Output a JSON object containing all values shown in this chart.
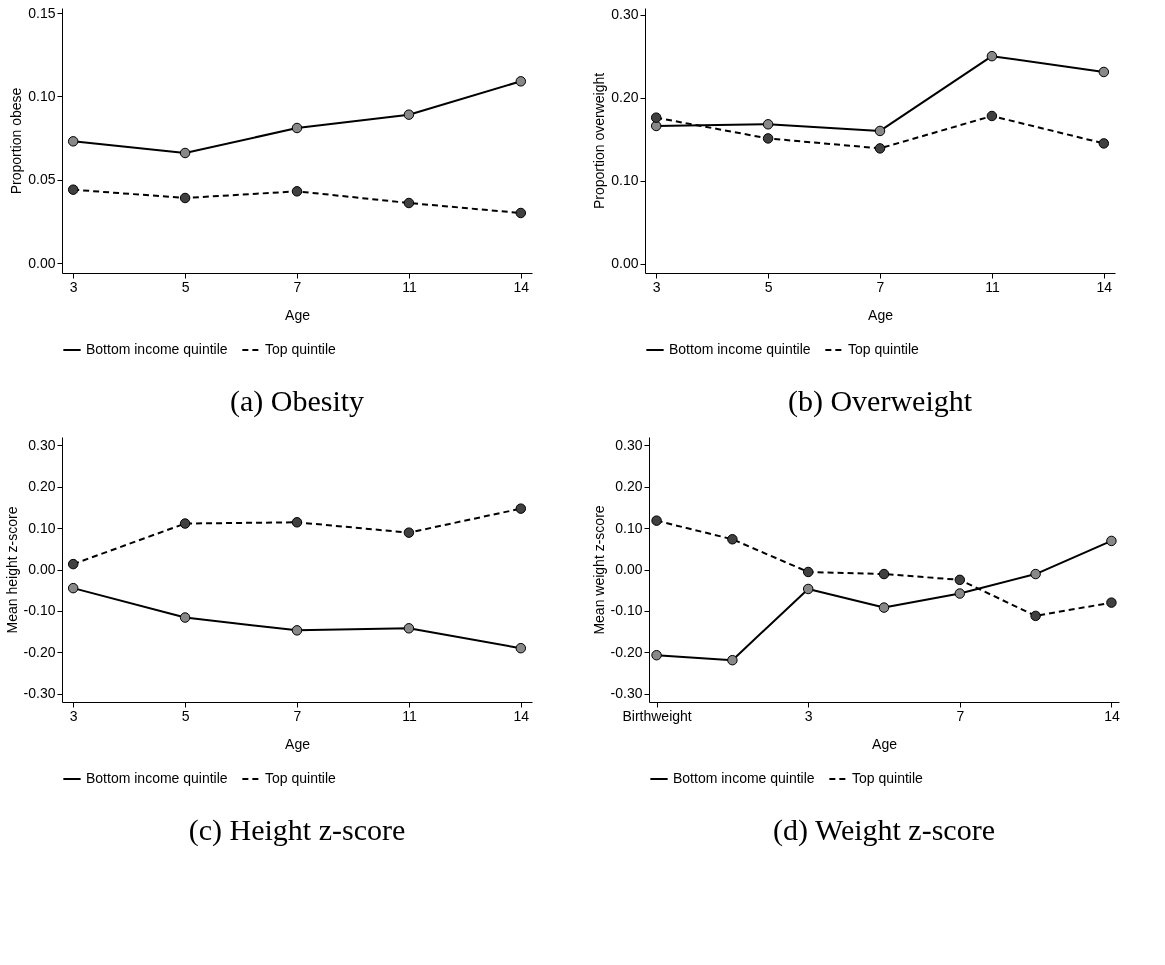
{
  "chart_data": [
    {
      "type": "line",
      "title": "(a) Obesity",
      "xlabel": "Age",
      "ylabel": "Proportion obese",
      "categories": [
        "3",
        "5",
        "7",
        "11",
        "14"
      ],
      "ylim": [
        -0.006,
        0.153
      ],
      "yticks": [
        {
          "value": 0,
          "label": "0.00"
        },
        {
          "value": 0.05,
          "label": "0.05"
        },
        {
          "value": 0.1,
          "label": "0.10"
        },
        {
          "value": 0.15,
          "label": "0.15"
        }
      ],
      "marker": "circle",
      "legend": "bottom",
      "grid": false,
      "series": [
        {
          "name": "Bottom income quintile",
          "color": "#000000",
          "line_style": "solid",
          "values": [
            0.073,
            0.066,
            0.081,
            0.089,
            0.109
          ]
        },
        {
          "name": "Top quintile",
          "color": "#000000",
          "line_style": "dashed",
          "values": [
            0.044,
            0.039,
            0.043,
            0.036,
            0.03
          ]
        }
      ]
    },
    {
      "type": "line",
      "title": "(b) Overweight",
      "xlabel": "Age",
      "ylabel": "Proportion overweight",
      "categories": [
        "3",
        "5",
        "7",
        "11",
        "14"
      ],
      "ylim": [
        -0.011,
        0.308
      ],
      "yticks": [
        {
          "value": 0,
          "label": "0.00"
        },
        {
          "value": 0.1,
          "label": "0.10"
        },
        {
          "value": 0.2,
          "label": "0.20"
        },
        {
          "value": 0.3,
          "label": "0.30"
        }
      ],
      "marker": "circle",
      "legend": "bottom",
      "grid": false,
      "series": [
        {
          "name": "Bottom income quintile",
          "color": "#000000",
          "line_style": "solid",
          "values": [
            0.166,
            0.168,
            0.16,
            0.25,
            0.231
          ]
        },
        {
          "name": "Top quintile",
          "color": "#000000",
          "line_style": "dashed",
          "values": [
            0.176,
            0.151,
            0.139,
            0.178,
            0.145
          ]
        }
      ]
    },
    {
      "type": "line",
      "title": "(c) Height z-score",
      "xlabel": "Age",
      "ylabel": "Mean height z-score",
      "categories": [
        "3",
        "5",
        "7",
        "11",
        "14"
      ],
      "ylim": [
        -0.32,
        0.32
      ],
      "yticks": [
        {
          "value": -0.3,
          "label": "-0.30"
        },
        {
          "value": -0.2,
          "label": "-0.20"
        },
        {
          "value": -0.1,
          "label": "-0.10"
        },
        {
          "value": 0,
          "label": "0.00"
        },
        {
          "value": 0.1,
          "label": "0.10"
        },
        {
          "value": 0.2,
          "label": "0.20"
        },
        {
          "value": 0.3,
          "label": "0.30"
        }
      ],
      "marker": "circle",
      "legend": "bottom",
      "grid": false,
      "series": [
        {
          "name": "Bottom income quintile",
          "color": "#000000",
          "line_style": "solid",
          "values": [
            -0.045,
            -0.116,
            -0.147,
            -0.142,
            -0.19
          ]
        },
        {
          "name": "Top quintile",
          "color": "#000000",
          "line_style": "dashed",
          "values": [
            0.013,
            0.111,
            0.114,
            0.089,
            0.147
          ]
        }
      ]
    },
    {
      "type": "line",
      "title": "(d) Weight z-score",
      "xlabel": "Age",
      "ylabel": "Mean weight z-score",
      "categories": [
        "Birthweight",
        null,
        "3",
        null,
        "7",
        null,
        "14"
      ],
      "ylim": [
        -0.32,
        0.32
      ],
      "yticks": [
        {
          "value": -0.3,
          "label": "-0.30"
        },
        {
          "value": -0.2,
          "label": "-0.20"
        },
        {
          "value": -0.1,
          "label": "-0.10"
        },
        {
          "value": 0,
          "label": "0.00"
        },
        {
          "value": 0.1,
          "label": "0.10"
        },
        {
          "value": 0.2,
          "label": "0.20"
        },
        {
          "value": 0.3,
          "label": "0.30"
        }
      ],
      "marker": "circle",
      "legend": "bottom",
      "grid": false,
      "series": [
        {
          "name": "Bottom income quintile",
          "color": "#000000",
          "line_style": "solid",
          "values": [
            -0.207,
            -0.219,
            -0.047,
            -0.092,
            -0.058,
            -0.011,
            0.069
          ]
        },
        {
          "name": "Top quintile",
          "color": "#000000",
          "line_style": "dashed",
          "values": [
            0.118,
            0.073,
            -0.006,
            -0.011,
            -0.025,
            -0.112,
            -0.08
          ]
        }
      ]
    }
  ]
}
